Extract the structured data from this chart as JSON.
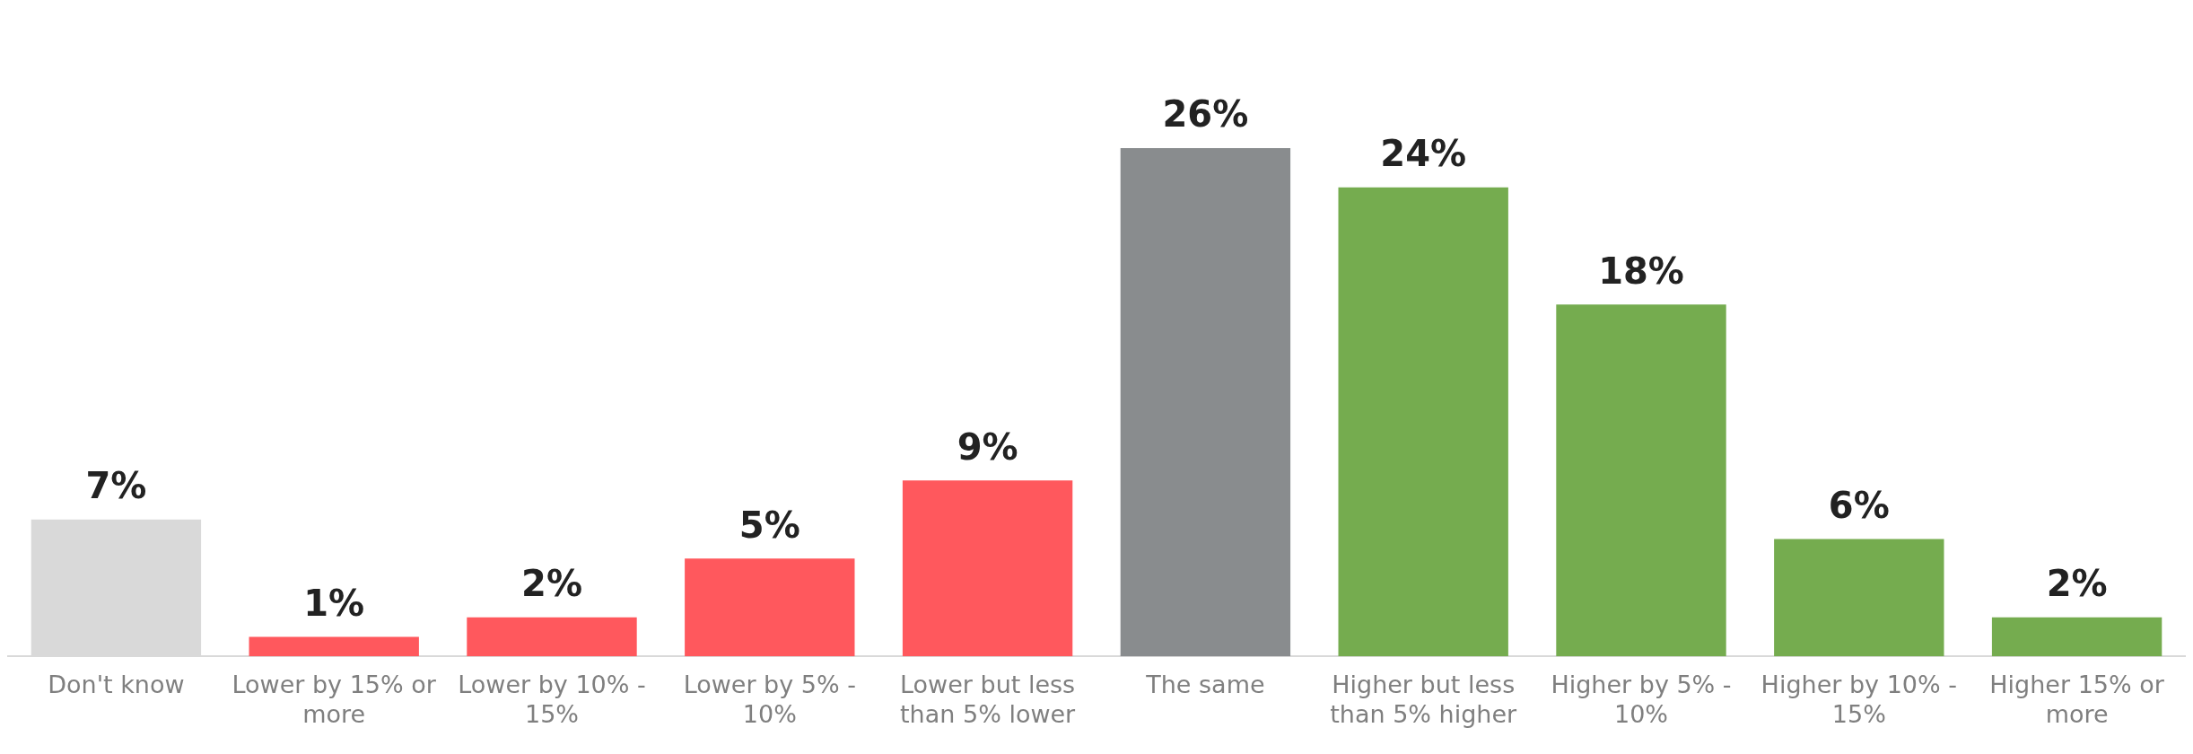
{
  "chart_data": {
    "type": "bar",
    "categories": [
      "Don't know",
      "Lower by 15% or more",
      "Lower by 10% - 15%",
      "Lower by 5% - 10%",
      "Lower but less than 5% lower",
      "The same",
      "Higher but less than 5% higher",
      "Higher by 5% - 10%",
      "Higher by 10% - 15%",
      "Higher 15% or more"
    ],
    "values": [
      7,
      1,
      2,
      5,
      9,
      26,
      24,
      18,
      6,
      2
    ],
    "colors": [
      "#d9d9d9",
      "#ff585d",
      "#ff585d",
      "#ff585d",
      "#ff585d",
      "#898c8e",
      "#75ac4f",
      "#75ac4f",
      "#75ac4f",
      "#75ac4f"
    ],
    "value_labels": [
      "7%",
      "1%",
      "2%",
      "5%",
      "9%",
      "26%",
      "24%",
      "18%",
      "6%",
      "2%"
    ],
    "grid": false,
    "legend": false
  }
}
